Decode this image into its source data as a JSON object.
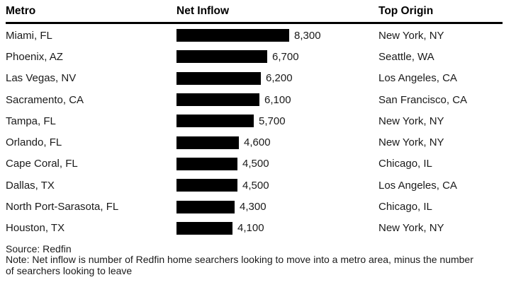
{
  "header": {
    "columns": [
      {
        "label": "Metro"
      },
      {
        "label": "Net Inflow"
      },
      {
        "label": "Top Origin"
      }
    ]
  },
  "rows": [
    {
      "metro": "Miami, FL",
      "value": 8300,
      "value_label": "8,300",
      "origin": "New York, NY"
    },
    {
      "metro": "Phoenix, AZ",
      "value": 6700,
      "value_label": "6,700",
      "origin": "Seattle, WA"
    },
    {
      "metro": "Las Vegas, NV",
      "value": 6200,
      "value_label": "6,200",
      "origin": "Los Angeles, CA"
    },
    {
      "metro": "Sacramento, CA",
      "value": 6100,
      "value_label": "6,100",
      "origin": "San Francisco, CA"
    },
    {
      "metro": "Tampa, FL",
      "value": 5700,
      "value_label": "5,700",
      "origin": "New York, NY"
    },
    {
      "metro": "Orlando, FL",
      "value": 4600,
      "value_label": "4,600",
      "origin": "New York, NY"
    },
    {
      "metro": "Cape Coral, FL",
      "value": 4500,
      "value_label": "4,500",
      "origin": "Chicago, IL"
    },
    {
      "metro": "Dallas, TX",
      "value": 4500,
      "value_label": "4,500",
      "origin": "Los Angeles, CA"
    },
    {
      "metro": "North Port-Sarasota, FL",
      "value": 4300,
      "value_label": "4,300",
      "origin": "Chicago, IL"
    },
    {
      "metro": "Houston, TX",
      "value": 4100,
      "value_label": "4,100",
      "origin": "New York, NY"
    }
  ],
  "footer": {
    "source": "Source: Redfin",
    "note": "Note: Net inflow is number of Redfin home searchers looking to move into a metro area, minus the number of searchers looking to leave"
  },
  "colors": {
    "bar": "#000000",
    "rule": "#000000",
    "text": "#1a1a1a",
    "background": "#ffffff"
  },
  "chart_data": {
    "type": "bar",
    "orientation": "horizontal",
    "columns": [
      "Metro",
      "Net Inflow",
      "Top Origin"
    ],
    "categories": [
      "Miami, FL",
      "Phoenix, AZ",
      "Las Vegas, NV",
      "Sacramento, CA",
      "Tampa, FL",
      "Orlando, FL",
      "Cape Coral, FL",
      "Dallas, TX",
      "North Port-Sarasota, FL",
      "Houston, TX"
    ],
    "values": [
      8300,
      6700,
      6200,
      6100,
      5700,
      4600,
      4500,
      4500,
      4300,
      4100
    ],
    "data_labels": [
      "8,300",
      "6,700",
      "6,200",
      "6,100",
      "5,700",
      "4,600",
      "4,500",
      "4,500",
      "4,300",
      "4,100"
    ],
    "top_origins": [
      "New York, NY",
      "Seattle, WA",
      "Los Angeles, CA",
      "San Francisco, CA",
      "New York, NY",
      "New York, NY",
      "Chicago, IL",
      "Los Angeles, CA",
      "Chicago, IL",
      "New York, NY"
    ],
    "value_axis_max_for_scale": 8300,
    "grid": false,
    "legend": false,
    "source": "Source: Redfin",
    "note": "Note: Net inflow is number of Redfin home searchers looking to move into a metro area, minus the number of searchers looking to leave"
  }
}
